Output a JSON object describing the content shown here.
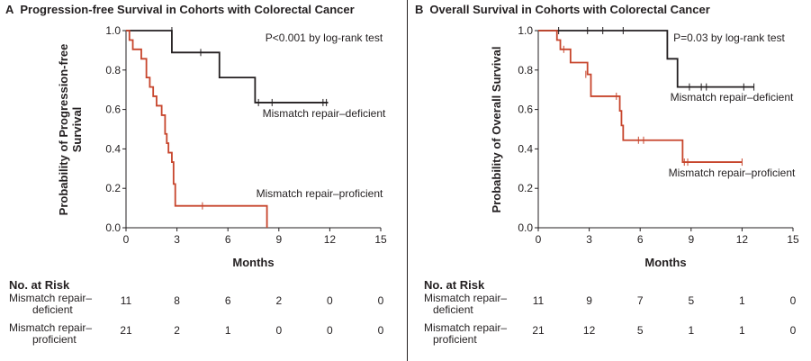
{
  "chart_data": [
    {
      "type": "line",
      "panel_letter": "A",
      "title": "Progression-free Survival in Cohorts with Colorectal Cancer",
      "xlabel": "Months",
      "ylabel_lines": [
        "Probability of Progression-free",
        "Survival"
      ],
      "xlim": [
        0,
        15
      ],
      "ylim": [
        0,
        1
      ],
      "x_ticks": [
        0,
        3,
        6,
        9,
        12,
        15
      ],
      "y_ticks": [
        "0.0",
        "0.2",
        "0.4",
        "0.6",
        "0.8",
        "1.0"
      ],
      "annotation": "P<0.001 by log-rank test",
      "series": [
        {
          "name": "Mismatch repair–deficient",
          "color": "#231f20",
          "steps": [
            [
              0,
              1.0
            ],
            [
              2.7,
              0.889
            ],
            [
              5.5,
              0.762
            ],
            [
              7.6,
              0.635
            ],
            [
              11.9,
              0.635
            ]
          ],
          "censored": [
            [
              2.7,
              1.0
            ],
            [
              4.4,
              0.889
            ],
            [
              7.8,
              0.635
            ],
            [
              8.6,
              0.635
            ],
            [
              11.6,
              0.635
            ],
            [
              11.8,
              0.635
            ]
          ]
        },
        {
          "name": "Mismatch repair–proficient",
          "color": "#c7452c",
          "steps": [
            [
              0,
              1.0
            ],
            [
              0.2,
              0.952
            ],
            [
              0.4,
              0.905
            ],
            [
              0.9,
              0.857
            ],
            [
              1.2,
              0.762
            ],
            [
              1.4,
              0.714
            ],
            [
              1.6,
              0.667
            ],
            [
              1.8,
              0.619
            ],
            [
              2.1,
              0.571
            ],
            [
              2.3,
              0.476
            ],
            [
              2.4,
              0.429
            ],
            [
              2.5,
              0.381
            ],
            [
              2.7,
              0.333
            ],
            [
              2.8,
              0.222
            ],
            [
              2.9,
              0.111
            ],
            [
              8.3,
              0.0
            ]
          ],
          "censored": [
            [
              4.5,
              0.111
            ]
          ]
        }
      ],
      "risk_table": {
        "heading": "No. at Risk",
        "rows": [
          {
            "label_lines": [
              "Mismatch repair–",
              "deficient"
            ],
            "values": [
              "11",
              "8",
              "6",
              "2",
              "0",
              "0"
            ]
          },
          {
            "label_lines": [
              "Mismatch repair–",
              "proficient"
            ],
            "values": [
              "21",
              "2",
              "1",
              "0",
              "0",
              "0"
            ]
          }
        ]
      }
    },
    {
      "type": "line",
      "panel_letter": "B",
      "title": "Overall Survival in Cohorts with Colorectal Cancer",
      "xlabel": "Months",
      "ylabel_lines": [
        "Probability of Overall Survival"
      ],
      "xlim": [
        0,
        15
      ],
      "ylim": [
        0,
        1
      ],
      "x_ticks": [
        0,
        3,
        6,
        9,
        12,
        15
      ],
      "y_ticks": [
        "0.0",
        "0.2",
        "0.4",
        "0.6",
        "0.8",
        "1.0"
      ],
      "annotation": "P=0.03 by log-rank test",
      "series": [
        {
          "name": "Mismatch repair–deficient",
          "color": "#231f20",
          "steps": [
            [
              0,
              1.0
            ],
            [
              7.6,
              0.857
            ],
            [
              8.2,
              0.714
            ],
            [
              12.7,
              0.714
            ]
          ],
          "censored": [
            [
              1.2,
              1.0
            ],
            [
              2.9,
              1.0
            ],
            [
              3.8,
              1.0
            ],
            [
              5.0,
              1.0
            ],
            [
              8.9,
              0.714
            ],
            [
              9.6,
              0.714
            ],
            [
              9.9,
              0.714
            ],
            [
              12.1,
              0.714
            ],
            [
              12.7,
              0.714
            ]
          ]
        },
        {
          "name": "Mismatch repair–proficient",
          "color": "#c7452c",
          "steps": [
            [
              0,
              1.0
            ],
            [
              1.1,
              0.952
            ],
            [
              1.3,
              0.905
            ],
            [
              1.9,
              0.838
            ],
            [
              2.9,
              0.778
            ],
            [
              3.1,
              0.667
            ],
            [
              4.8,
              0.593
            ],
            [
              4.9,
              0.519
            ],
            [
              5.0,
              0.444
            ],
            [
              8.5,
              0.333
            ],
            [
              12.0,
              0.333
            ]
          ],
          "censored": [
            [
              1.5,
              0.905
            ],
            [
              2.8,
              0.778
            ],
            [
              4.6,
              0.667
            ],
            [
              5.9,
              0.444
            ],
            [
              6.2,
              0.444
            ],
            [
              8.6,
              0.333
            ],
            [
              8.8,
              0.333
            ],
            [
              12.0,
              0.333
            ]
          ]
        }
      ],
      "risk_table": {
        "heading": "No. at Risk",
        "rows": [
          {
            "label_lines": [
              "Mismatch repair–",
              "deficient"
            ],
            "values": [
              "11",
              "9",
              "7",
              "5",
              "1",
              "0"
            ]
          },
          {
            "label_lines": [
              "Mismatch repair–",
              "proficient"
            ],
            "values": [
              "21",
              "12",
              "5",
              "1",
              "1",
              "0"
            ]
          }
        ]
      }
    }
  ]
}
